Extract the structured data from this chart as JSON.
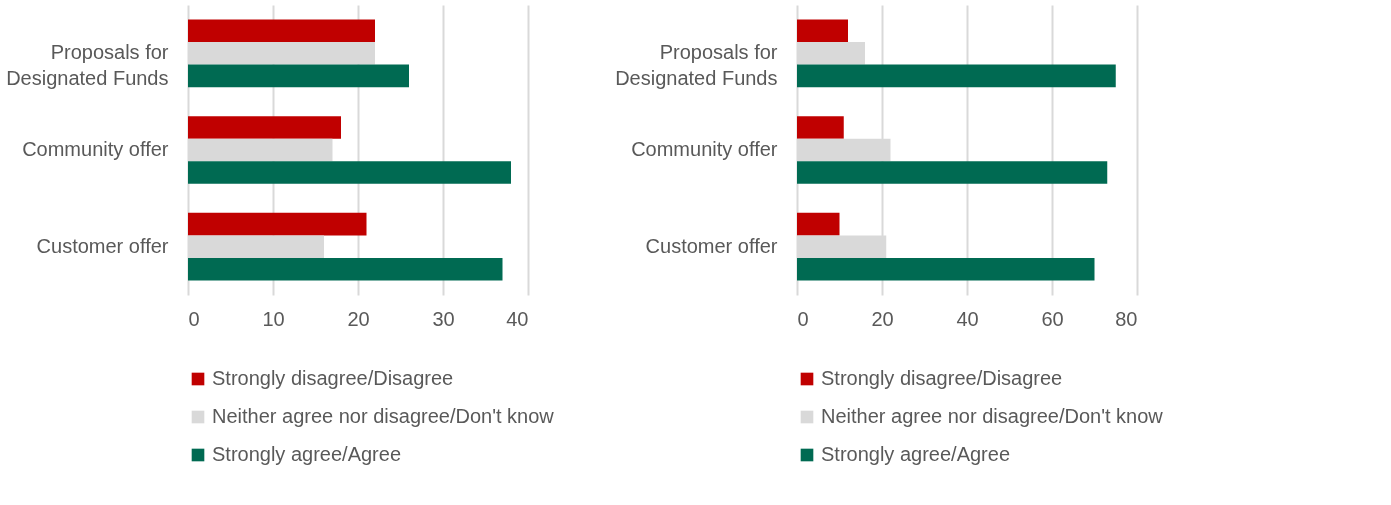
{
  "chart_data": [
    {
      "type": "bar",
      "orientation": "horizontal",
      "categories": [
        "Proposals for Designated Funds",
        "Community offer",
        "Customer offer"
      ],
      "series": [
        {
          "name": "Strongly disagree/Disagree",
          "color": "#c00000",
          "values": [
            22,
            18,
            21
          ]
        },
        {
          "name": "Neither agree nor disagree/Don't know",
          "color": "#d9d9d9",
          "values": [
            22,
            17,
            16
          ]
        },
        {
          "name": "Strongly agree/Agree",
          "color": "#006a52",
          "values": [
            26,
            38,
            37
          ]
        }
      ],
      "xlim": [
        0,
        40
      ],
      "xticks": [
        0,
        10,
        20,
        30,
        40
      ],
      "grid": "x",
      "legend": "bottom"
    },
    {
      "type": "bar",
      "orientation": "horizontal",
      "categories": [
        "Proposals for Designated Funds",
        "Community offer",
        "Customer offer"
      ],
      "series": [
        {
          "name": "Strongly disagree/Disagree",
          "color": "#c00000",
          "values": [
            12,
            11,
            10
          ]
        },
        {
          "name": "Neither agree nor disagree/Don't know",
          "color": "#d9d9d9",
          "values": [
            16,
            22,
            21
          ]
        },
        {
          "name": "Strongly agree/Agree",
          "color": "#006a52",
          "values": [
            75,
            73,
            70
          ]
        }
      ],
      "xlim": [
        0,
        80
      ],
      "xticks": [
        0,
        20,
        40,
        60,
        80
      ],
      "grid": "x",
      "legend": "bottom"
    }
  ]
}
